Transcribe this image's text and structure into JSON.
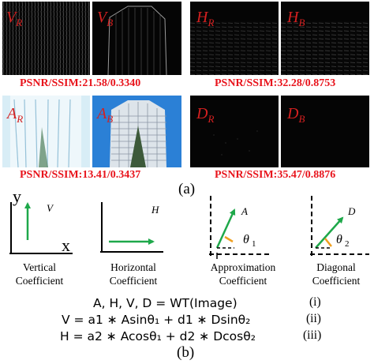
{
  "panel_a": {
    "images": [
      {
        "letter": "V",
        "sub": "R"
      },
      {
        "letter": "V",
        "sub": "B"
      },
      {
        "letter": "H",
        "sub": "R"
      },
      {
        "letter": "H",
        "sub": "B"
      },
      {
        "letter": "A",
        "sub": "R"
      },
      {
        "letter": "A",
        "sub": "B"
      },
      {
        "letter": "D",
        "sub": "R"
      },
      {
        "letter": "D",
        "sub": "B"
      }
    ],
    "metrics": [
      "PSNR/SSIM:21.58/0.3340",
      "PSNR/SSIM:32.28/0.8753",
      "PSNR/SSIM:13.41/0.3437",
      "PSNR/SSIM:35.47/0.8876"
    ],
    "label": "(a)"
  },
  "panel_b": {
    "diagrams": [
      {
        "italic_label": "V",
        "caption1": "Vertical",
        "caption2": "Coefficient",
        "axis_x": "x",
        "axis_y": "y"
      },
      {
        "italic_label": "H",
        "caption1": "Horizontal",
        "caption2": "Coefficient"
      },
      {
        "italic_label": "A",
        "theta": "θ",
        "theta_sub": "1",
        "caption1": "Approximation",
        "caption2": "Coefficient"
      },
      {
        "italic_label": "D",
        "theta": "θ",
        "theta_sub": "2",
        "caption1": "Diagonal",
        "caption2": "Coefficient"
      }
    ],
    "equations": [
      {
        "text": "A, H, V, D = WT(Image)",
        "num": "(i)"
      },
      {
        "text": "V = a1 ∗ Asinθ₁ + d1 ∗ Dsinθ₂",
        "num": "(ii)"
      },
      {
        "text": "H = a2 ∗ Acosθ₁ + d2 ∗ Dcosθ₂",
        "num": "(iii)"
      }
    ],
    "label": "(b)"
  },
  "colors": {
    "metric_red": "#e8141c",
    "tag_red": "#d42020",
    "arrow_green": "#1ea84a",
    "angle_orange": "#f0a020"
  }
}
